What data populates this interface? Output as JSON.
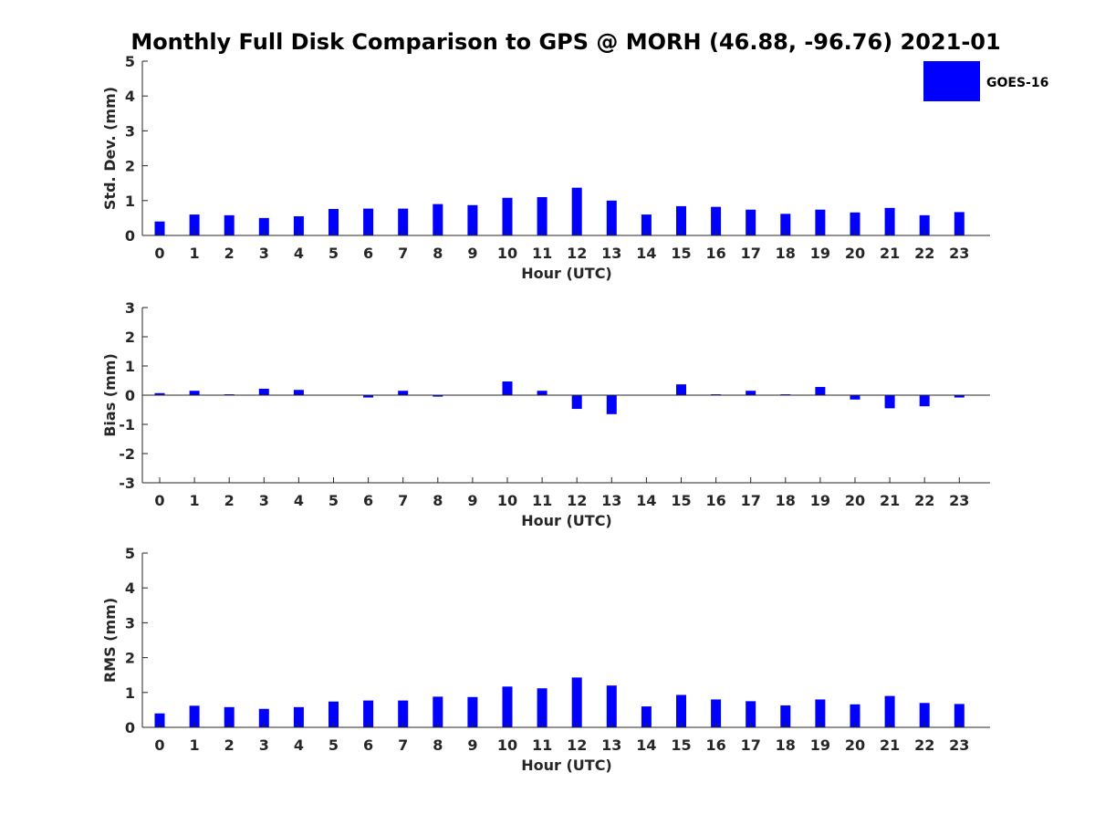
{
  "title": "Monthly Full Disk Comparison to GPS @ MORH (46.88, -96.76) 2021-01",
  "legend": {
    "label": "GOES-16",
    "position": "top-right"
  },
  "colors": {
    "bar": "#0000ff",
    "axis": "#262626",
    "background": "#ffffff"
  },
  "chart_data": [
    {
      "type": "bar",
      "xlabel": "Hour (UTC)",
      "ylabel": "Std. Dev. (mm)",
      "ylim": [
        0,
        5
      ],
      "yticks": [
        0,
        1,
        2,
        3,
        4,
        5
      ],
      "grid": false,
      "categories": [
        "0",
        "1",
        "2",
        "3",
        "4",
        "5",
        "6",
        "7",
        "8",
        "9",
        "10",
        "11",
        "12",
        "13",
        "14",
        "15",
        "16",
        "17",
        "18",
        "19",
        "20",
        "21",
        "22",
        "23"
      ],
      "series": [
        {
          "name": "GOES-16",
          "values": [
            0.4,
            0.6,
            0.58,
            0.5,
            0.55,
            0.76,
            0.77,
            0.77,
            0.9,
            0.87,
            1.08,
            1.1,
            1.37,
            1.0,
            0.6,
            0.84,
            0.82,
            0.74,
            0.62,
            0.74,
            0.66,
            0.79,
            0.58,
            0.67
          ]
        }
      ]
    },
    {
      "type": "bar",
      "xlabel": "Hour (UTC)",
      "ylabel": "Bias (mm)",
      "ylim": [
        -3,
        3
      ],
      "yticks": [
        -3,
        -2,
        -1,
        0,
        1,
        2,
        3
      ],
      "grid": false,
      "categories": [
        "0",
        "1",
        "2",
        "3",
        "4",
        "5",
        "6",
        "7",
        "8",
        "9",
        "10",
        "11",
        "12",
        "13",
        "14",
        "15",
        "16",
        "17",
        "18",
        "19",
        "20",
        "21",
        "22",
        "23"
      ],
      "series": [
        {
          "name": "GOES-16",
          "values": [
            0.07,
            0.15,
            0.03,
            0.22,
            0.18,
            0.0,
            -0.08,
            0.15,
            -0.05,
            0.0,
            0.47,
            0.15,
            -0.47,
            -0.65,
            0.0,
            0.37,
            0.03,
            0.15,
            0.03,
            0.28,
            -0.15,
            -0.45,
            -0.38,
            -0.08
          ]
        }
      ]
    },
    {
      "type": "bar",
      "xlabel": "Hour (UTC)",
      "ylabel": "RMS (mm)",
      "ylim": [
        0,
        5
      ],
      "yticks": [
        0,
        1,
        2,
        3,
        4,
        5
      ],
      "grid": false,
      "categories": [
        "0",
        "1",
        "2",
        "3",
        "4",
        "5",
        "6",
        "7",
        "8",
        "9",
        "10",
        "11",
        "12",
        "13",
        "14",
        "15",
        "16",
        "17",
        "18",
        "19",
        "20",
        "21",
        "22",
        "23"
      ],
      "series": [
        {
          "name": "GOES-16",
          "values": [
            0.4,
            0.62,
            0.58,
            0.53,
            0.58,
            0.74,
            0.77,
            0.77,
            0.88,
            0.87,
            1.17,
            1.12,
            1.43,
            1.2,
            0.6,
            0.93,
            0.8,
            0.75,
            0.63,
            0.8,
            0.66,
            0.9,
            0.7,
            0.67
          ]
        }
      ]
    }
  ]
}
